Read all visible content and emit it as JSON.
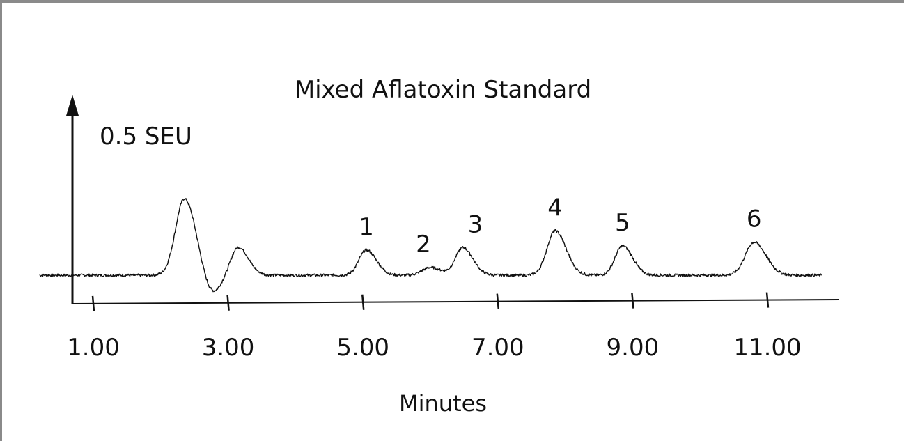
{
  "chart_data": {
    "type": "line",
    "title": "Mixed Aflatoxin Standard",
    "xlabel": "Minutes",
    "ylabel": "",
    "y_scale_label": "0.5 SEU",
    "xlim": [
      0.2,
      11.9
    ],
    "ylim": [
      -0.5,
      3.3
    ],
    "x_ticks": [
      1,
      3,
      5,
      7,
      9,
      11
    ],
    "x_tick_labels": [
      "1.00",
      "3.00",
      "5.00",
      "7.00",
      "9.00",
      "11.00"
    ],
    "baseline": 0,
    "peaks": [
      {
        "label": "",
        "rt": 2.35,
        "height": 1.28,
        "width": 0.13
      },
      {
        "label": "",
        "rt": 3.15,
        "height": 0.47,
        "width": 0.11
      },
      {
        "label": "1",
        "rt": 5.05,
        "height": 0.42,
        "width": 0.11
      },
      {
        "label": "2",
        "rt": 6.0,
        "height": 0.13,
        "width": 0.12
      },
      {
        "label": "3",
        "rt": 6.48,
        "height": 0.46,
        "width": 0.11
      },
      {
        "label": "4",
        "rt": 7.85,
        "height": 0.74,
        "width": 0.12
      },
      {
        "label": "5",
        "rt": 8.85,
        "height": 0.49,
        "width": 0.11
      },
      {
        "label": "6",
        "rt": 10.8,
        "height": 0.55,
        "width": 0.13
      }
    ],
    "dips": [
      {
        "rt": 2.75,
        "depth": 0.33,
        "width": 0.13
      }
    ],
    "grid": false,
    "legend": "none"
  }
}
